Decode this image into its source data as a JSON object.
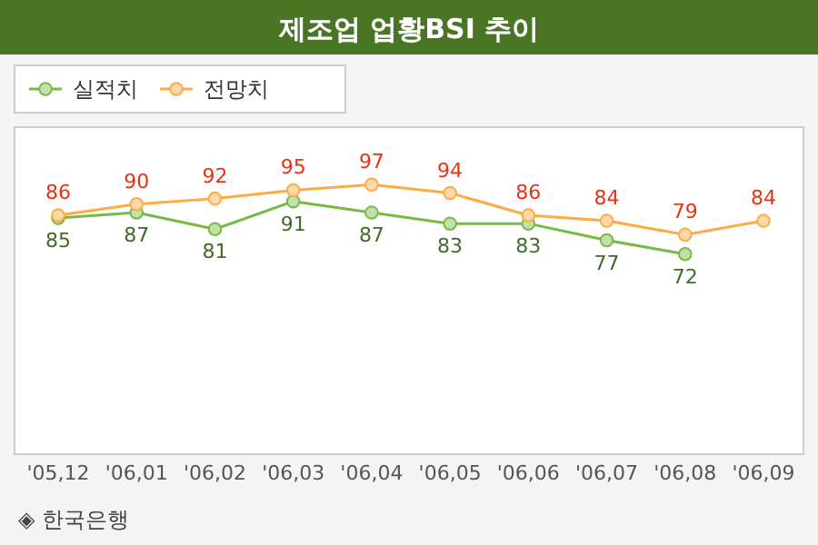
{
  "chart_data": {
    "type": "line",
    "title": "제조업 업황BSI 추이",
    "categories": [
      "'05,12",
      "'06,01",
      "'06,02",
      "'06,03",
      "'06,04",
      "'06,05",
      "'06,06",
      "'06,07",
      "'06,08",
      "'06,09"
    ],
    "series": [
      {
        "name": "실적치",
        "color": "#77bb44",
        "values": [
          85,
          87,
          81,
          91,
          87,
          83,
          83,
          77,
          72,
          null
        ]
      },
      {
        "name": "전망치",
        "color": "#ffaa44",
        "values": [
          86,
          90,
          92,
          95,
          97,
          94,
          86,
          84,
          79,
          84
        ]
      }
    ],
    "data_labels": true,
    "marker": "circle",
    "legend": "top left",
    "grid": false,
    "annotations": [
      "◈ 한국은행"
    ]
  }
}
